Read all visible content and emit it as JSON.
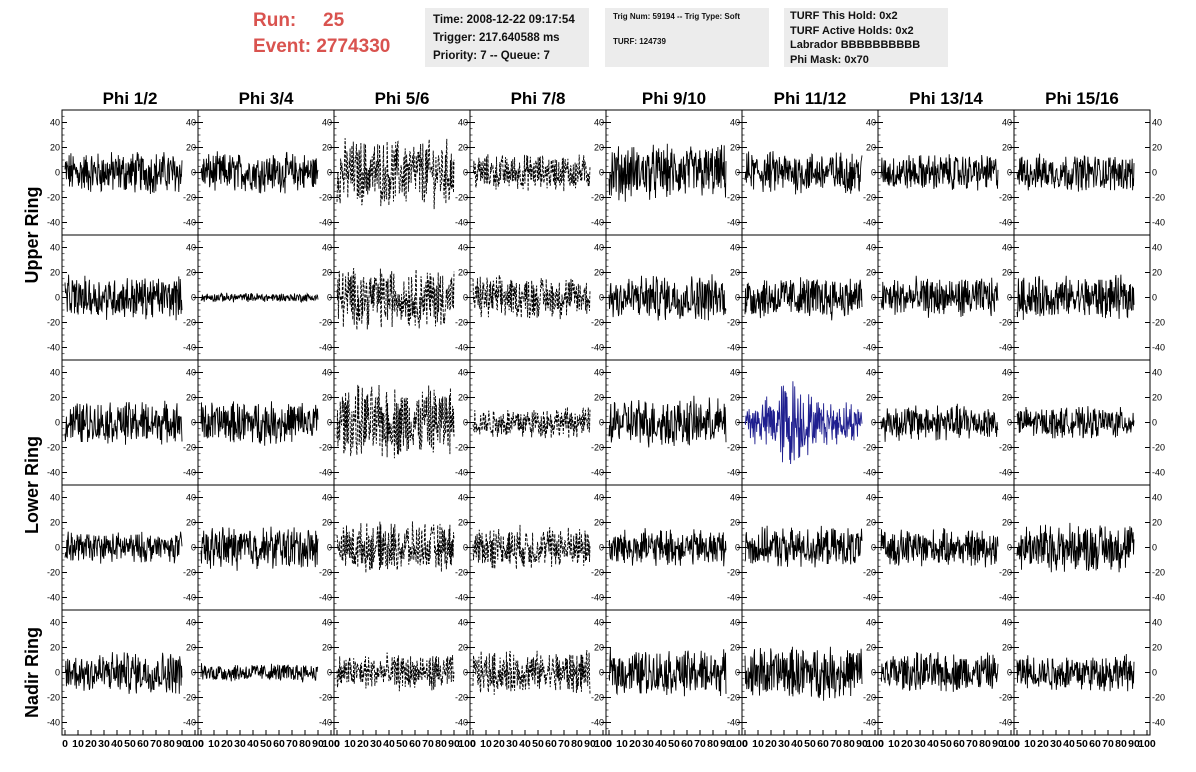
{
  "header": {
    "run_label": "Run:",
    "run_value": "25",
    "event_label": "Event:",
    "event_value": "2774330",
    "time": "Time: 2008-12-22 09:17:54",
    "trigger": "Trigger: 217.640588 ms",
    "priority": "Priority: 7 -- Queue: 7",
    "trig_num": "Trig Num: 59194 -- Trig Type: Soft",
    "turf": "TURF: 124739",
    "turf_this_hold": "TURF This Hold: 0x2",
    "turf_active_holds": "TURF Active Holds: 0x2",
    "labrador": "Labrador BBBBBBBBBB",
    "phi_mask": "Phi Mask: 0x70"
  },
  "chart_data": {
    "type": "line",
    "columns": [
      "Phi 1/2",
      "Phi 3/4",
      "Phi 5/6",
      "Phi 7/8",
      "Phi 9/10",
      "Phi 11/12",
      "Phi 13/14",
      "Phi 15/16"
    ],
    "ring_labels": [
      {
        "text": "Upper Ring"
      },
      {
        "text": "Lower Ring"
      },
      {
        "text": "Nadir Ring"
      }
    ],
    "rows": 5,
    "x_range": [
      0,
      100
    ],
    "y_range": [
      -50,
      50
    ],
    "y_ticks": [
      -40,
      -20,
      0,
      20,
      40
    ],
    "x_tick_labels": [
      "0",
      "10",
      "20",
      "30",
      "40",
      "50",
      "60",
      "70",
      "80",
      "90",
      "100"
    ],
    "series_color_default": "#000000",
    "series_color_highlight": "#1f1f8f",
    "highlight_panel": {
      "row": 2,
      "col": 5
    },
    "dashed_columns": [
      2,
      3
    ],
    "amplitudes": [
      [
        14,
        13,
        22,
        12,
        18,
        14,
        12,
        12
      ],
      [
        14,
        3,
        20,
        14,
        15,
        14,
        13,
        14
      ],
      [
        14,
        14,
        24,
        10,
        16,
        22,
        12,
        10
      ],
      [
        10,
        14,
        16,
        14,
        12,
        13,
        12,
        16
      ],
      [
        14,
        6,
        12,
        14,
        15,
        17,
        13,
        12
      ]
    ]
  }
}
